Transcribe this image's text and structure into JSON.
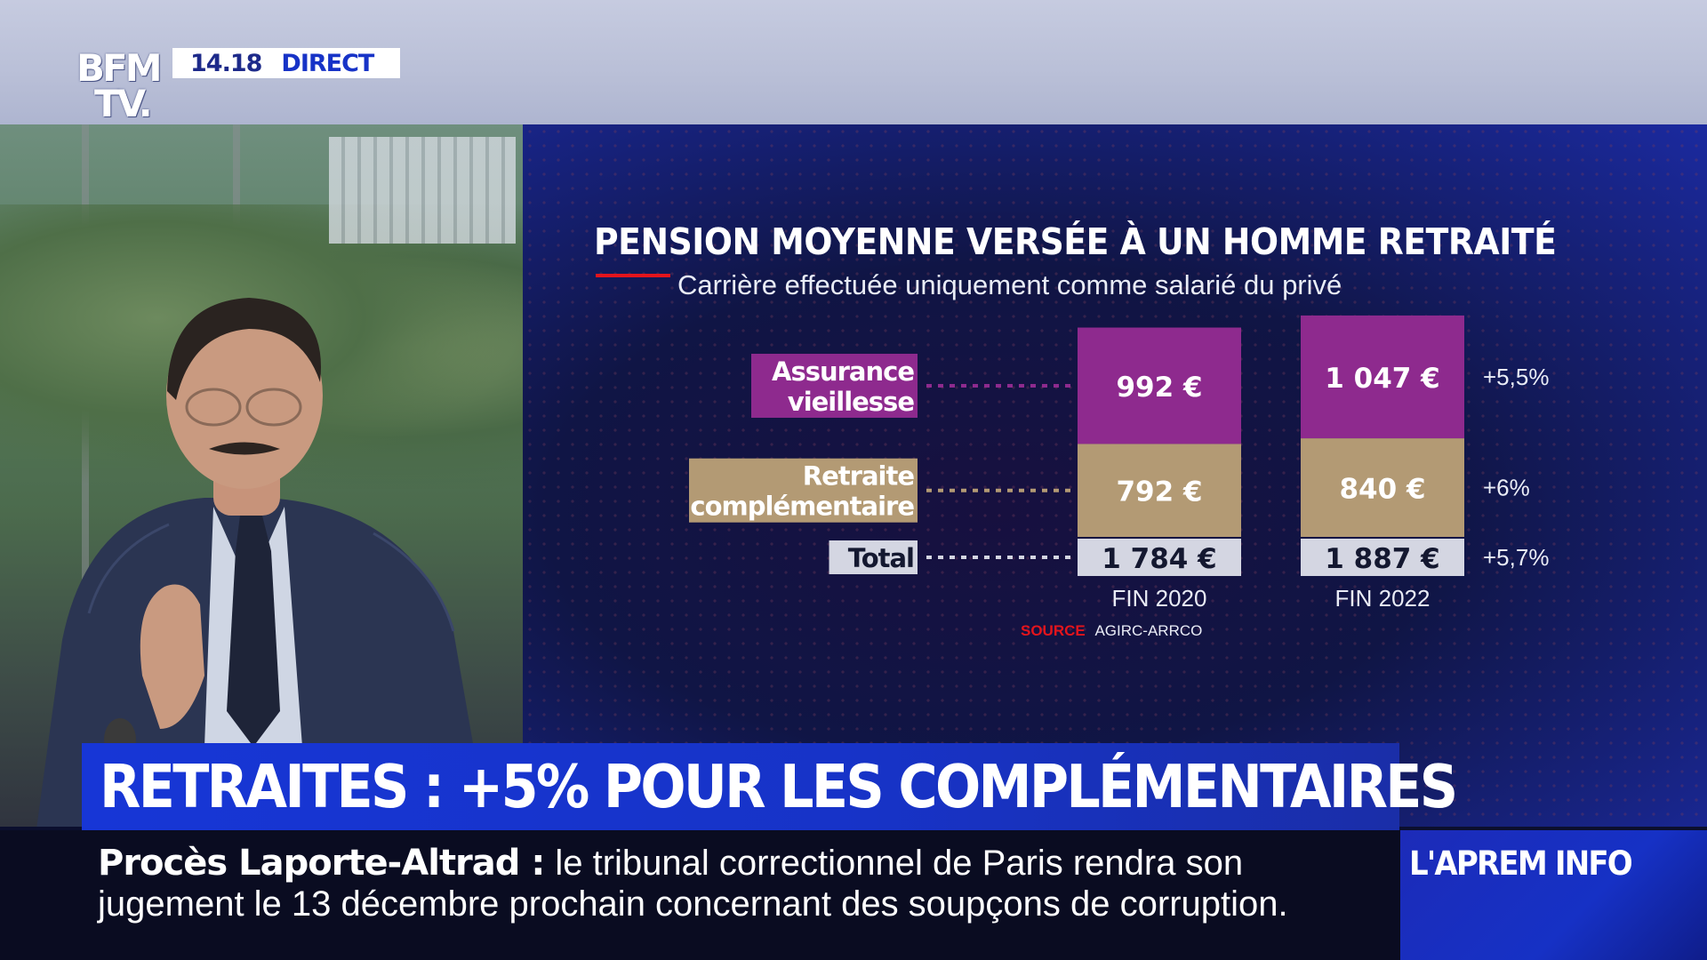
{
  "channel": {
    "logo_line1": "BFM",
    "logo_line2": "TV.",
    "clock": "14.18",
    "live_label": "DIRECT"
  },
  "chart_data": {
    "type": "bar",
    "stacked": true,
    "title": "PENSION MOYENNE VERSÉE À UN HOMME RETRAITÉ",
    "subtitle": "Carrière effectuée uniquement comme salarié du privé",
    "categories": [
      "FIN 2020",
      "FIN 2022"
    ],
    "series": [
      {
        "name": "Assurance vieillesse",
        "name_lines": [
          "Assurance",
          "vieillesse"
        ],
        "values": [
          992,
          1047
        ],
        "value_labels": [
          "992 €",
          "1 047 €"
        ],
        "change": "+5,5%",
        "color": "#8e2a8e"
      },
      {
        "name": "Retraite complémentaire",
        "name_lines": [
          "Retraite",
          "complémentaire"
        ],
        "values": [
          792,
          840
        ],
        "value_labels": [
          "792 €",
          "840 €"
        ],
        "change": "+6%",
        "color": "#b39a74"
      }
    ],
    "total": {
      "name": "Total",
      "values": [
        1784,
        1887
      ],
      "value_labels": [
        "1 784 €",
        "1 887 €"
      ],
      "change": "+5,7%",
      "color": "#d4d6e2"
    },
    "source_label": "SOURCE",
    "source": "AGIRC-ARRCO"
  },
  "lower_third": {
    "headline": "RETRAITES : +5% POUR LES COMPLÉMENTAIRES",
    "ticker_topic": "Procès Laporte-Altrad :",
    "ticker_text": "le tribunal correctionnel de Paris rendra son jugement le 13 décembre prochain concernant des soupçons de corruption.",
    "show_name": "L'APREM INFO"
  },
  "colors": {
    "accent_red": "#e3141c",
    "brand_blue": "#1733c7"
  }
}
